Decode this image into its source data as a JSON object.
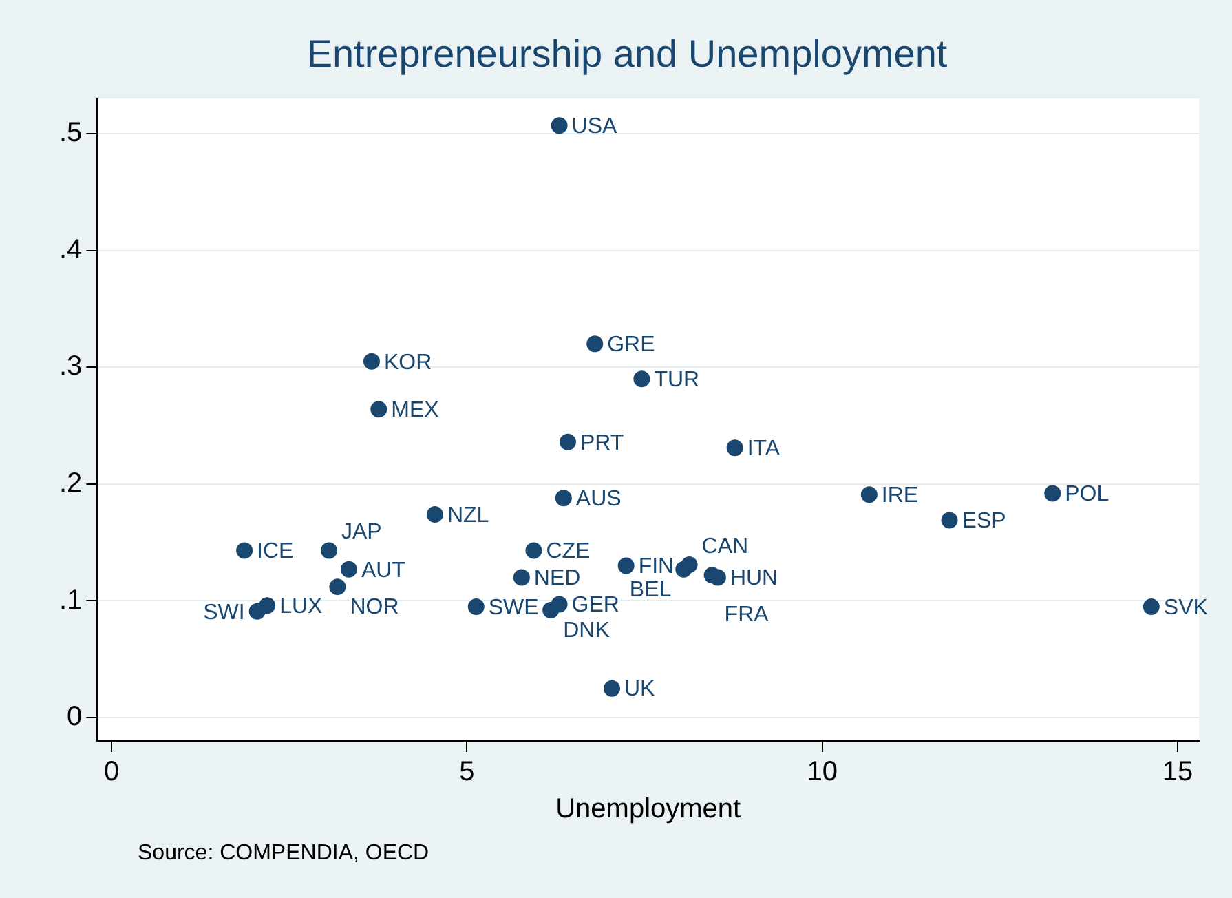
{
  "chart_data": {
    "type": "scatter",
    "title": "Entrepreneurship and Unemployment",
    "xlabel": "Unemployment",
    "x": [
      6.3,
      6.8,
      3.66,
      7.46,
      3.76,
      6.42,
      8.77,
      6.36,
      10.66,
      13.24,
      11.79,
      4.55,
      1.87,
      3.06,
      5.94,
      3.34,
      7.24,
      8.13,
      8.05,
      8.45,
      8.53,
      5.77,
      3.18,
      5.13,
      6.3,
      6.18,
      2.19,
      2.05,
      14.63,
      7.04
    ],
    "values": [
      0.507,
      0.32,
      0.305,
      0.29,
      0.264,
      0.236,
      0.231,
      0.188,
      0.191,
      0.192,
      0.169,
      0.174,
      0.143,
      0.143,
      0.143,
      0.127,
      0.13,
      0.131,
      0.127,
      0.122,
      0.12,
      0.12,
      0.112,
      0.095,
      0.097,
      0.092,
      0.096,
      0.091,
      0.095,
      0.025
    ],
    "value_labels": [
      "USA",
      "GRE",
      "KOR",
      "TUR",
      "MEX",
      "PRT",
      "ITA",
      "AUS",
      "IRE",
      "POL",
      "ESP",
      "NZL",
      "ICE",
      "JAP",
      "CZE",
      "AUT",
      "FIN",
      "CAN",
      "BEL",
      "FRA",
      "HUN",
      "NED",
      "NOR",
      "SWE",
      "GER",
      "DNK",
      "LUX",
      "SWI",
      "SVK",
      "UK"
    ],
    "color": "#1a476f",
    "marker": "circle",
    "grid": "y",
    "xlim": [
      -0.2,
      15.3
    ],
    "xticks": [
      0,
      5,
      10,
      15
    ],
    "ylim": [
      -0.02,
      0.53
    ],
    "yticks": [
      {
        "value": 0,
        "label": "0"
      },
      {
        "value": 0.1,
        "label": ".1"
      },
      {
        "value": 0.2,
        "label": ".2"
      },
      {
        "value": 0.3,
        "label": ".3"
      },
      {
        "value": 0.4,
        "label": ".4"
      },
      {
        "value": 0.5,
        "label": ".5"
      }
    ],
    "annotations": [
      "Source: COMPENDIA, OECD"
    ]
  }
}
